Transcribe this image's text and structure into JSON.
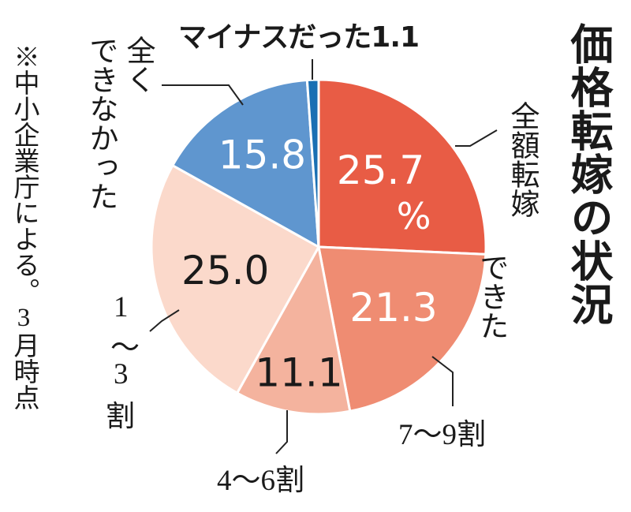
{
  "title": "価格転嫁の状況",
  "note": "※中小企業庁による。3月時点",
  "colors": {
    "full": "#e85c45",
    "p7_9": "#ef8c72",
    "p4_6": "#f4b39e",
    "p1_3": "#fbd9cb",
    "none": "#5f96cf",
    "minus": "#1a6fb3",
    "outline": "#ffffff",
    "leader": "#222222"
  },
  "chart_data": {
    "type": "pie",
    "unit": "%",
    "slices": [
      {
        "label": "全額転嫁できた",
        "value": 25.7,
        "value_label": "25.7",
        "unit_label": "%",
        "color_key": "full",
        "text_color": "#ffffff"
      },
      {
        "label": "7〜9割",
        "value": 21.3,
        "value_label": "21.3",
        "color_key": "p7_9",
        "text_color": "#ffffff"
      },
      {
        "label": "4〜6割",
        "value": 11.1,
        "value_label": "11.1",
        "color_key": "p4_6",
        "text_color": "#1a1a1a"
      },
      {
        "label": "1〜3割",
        "value": 25.0,
        "value_label": "25.0",
        "color_key": "p1_3",
        "text_color": "#1a1a1a"
      },
      {
        "label": "全くできなかった",
        "value": 15.8,
        "value_label": "15.8",
        "color_key": "none",
        "text_color": "#ffffff"
      },
      {
        "label": "マイナスだった",
        "value": 1.1,
        "value_label": "1.1",
        "color_key": "minus",
        "text_color": "#1a1a1a"
      }
    ]
  },
  "labels": {
    "full_line1": "全額転嫁",
    "full_line2": "できた",
    "p7_9": "7〜9割",
    "p4_6": "4〜6割",
    "p1_3_a": "1",
    "p1_3_b": "〜",
    "p1_3_c": "3",
    "p1_3_d": "割",
    "none_a": "全く",
    "none_b": "できなかった",
    "minus": "マイナスだった1.1"
  }
}
